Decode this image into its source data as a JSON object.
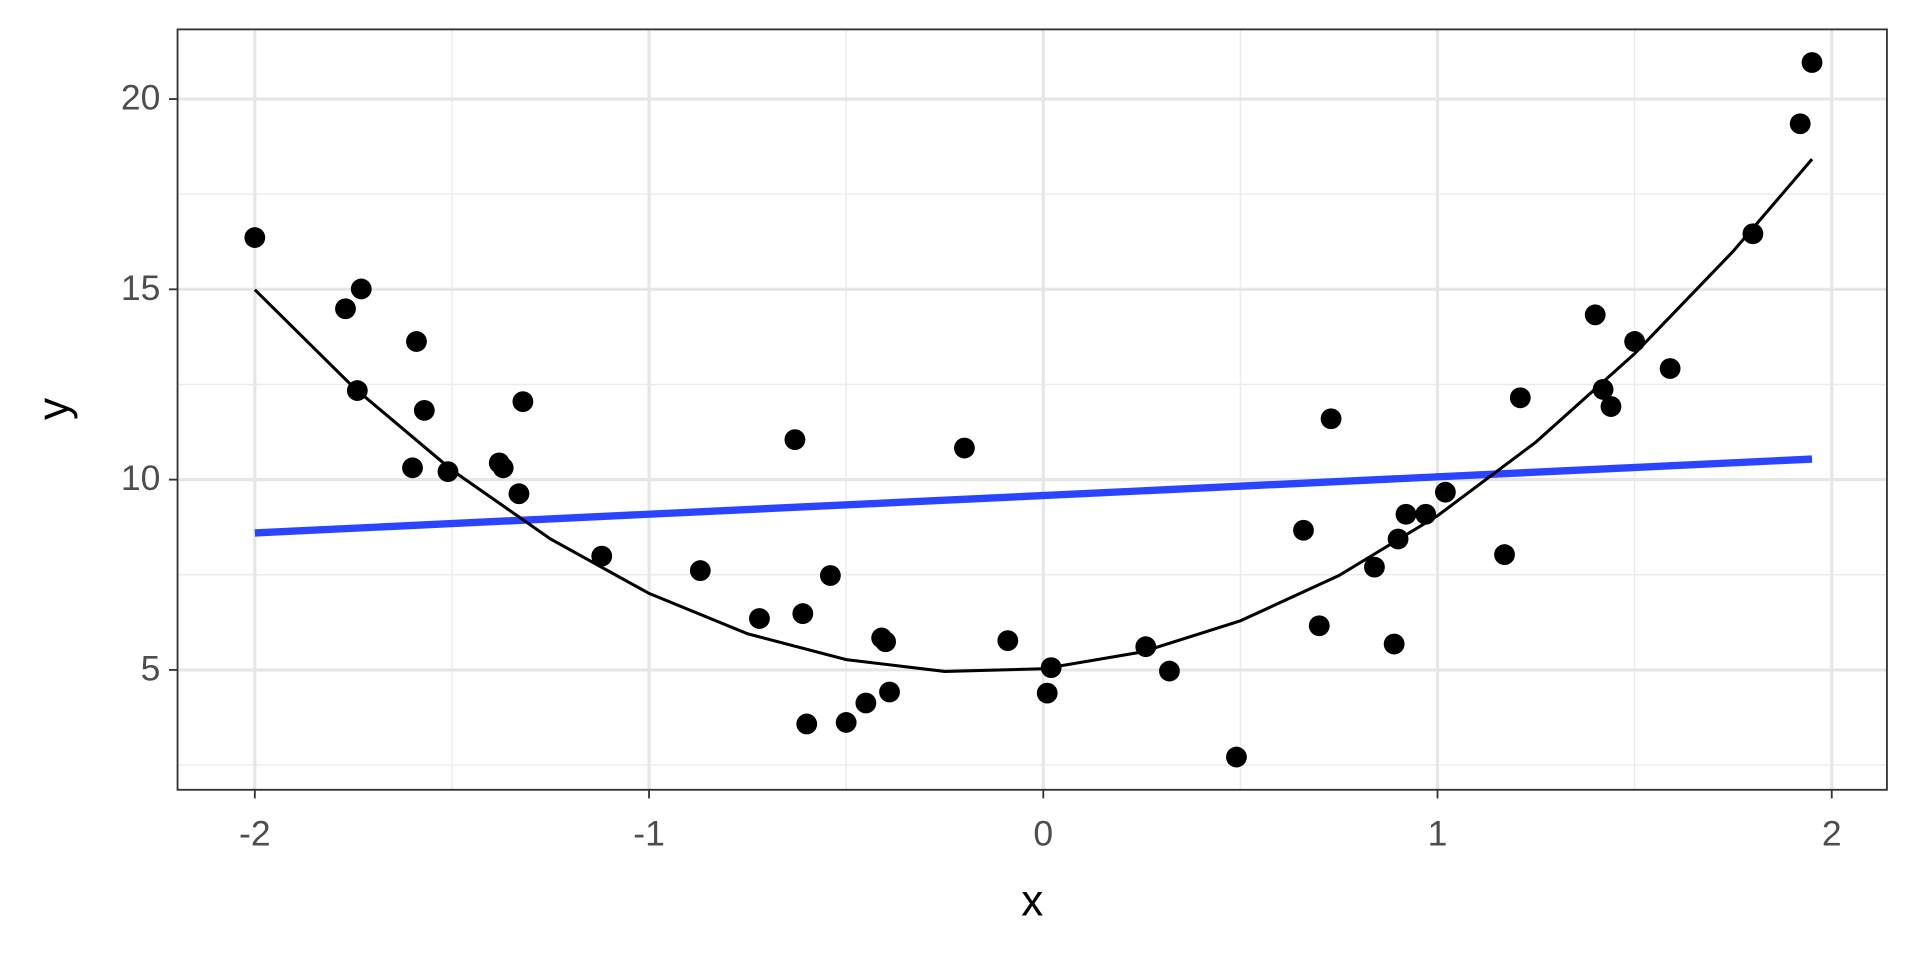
{
  "chart_data": {
    "type": "scatter",
    "x_label": "x",
    "y_label": "y",
    "xlim": [
      -2.196,
      2.14
    ],
    "ylim": [
      1.85,
      21.83
    ],
    "xticks": [
      -2,
      -1,
      0,
      1,
      2
    ],
    "yticks": [
      5,
      10,
      15,
      20
    ],
    "x_minor_grid": [
      -1.5,
      -0.5,
      0.5,
      1.5
    ],
    "y_minor_grid": [
      2.5,
      7.5,
      12.5,
      17.5
    ],
    "grid": true,
    "series": [
      {
        "mark": "point",
        "color": "#000000",
        "x": [
          -2.0,
          -1.77,
          -1.73,
          -1.74,
          -1.59,
          -1.57,
          -1.6,
          -1.51,
          -1.38,
          -1.37,
          -1.33,
          -1.32,
          -1.12,
          -0.87,
          -0.72,
          -0.61,
          -0.63,
          -0.54,
          -0.6,
          -0.5,
          -0.45,
          -0.41,
          -0.4,
          -0.39,
          -0.2,
          -0.09,
          0.02,
          0.01,
          0.26,
          0.32,
          0.49,
          0.66,
          0.7,
          0.73,
          0.84,
          0.89,
          0.9,
          0.92,
          0.97,
          1.02,
          1.17,
          1.21,
          1.4,
          1.42,
          1.44,
          1.5,
          1.59,
          1.8,
          1.92,
          1.95
        ],
        "values": [
          16.36,
          14.49,
          15.01,
          12.34,
          13.63,
          11.82,
          10.31,
          10.21,
          10.44,
          10.31,
          9.63,
          12.05,
          7.99,
          7.61,
          6.35,
          6.48,
          11.05,
          7.48,
          3.58,
          3.62,
          4.13,
          5.84,
          5.74,
          4.42,
          10.83,
          5.77,
          5.06,
          4.39,
          5.61,
          4.97,
          2.71,
          8.67,
          6.16,
          11.6,
          7.7,
          5.68,
          8.44,
          9.09,
          9.09,
          9.67,
          8.03,
          12.15,
          14.33,
          12.37,
          11.92,
          13.63,
          12.92,
          16.46,
          19.35,
          20.96
        ]
      },
      {
        "mark": "line",
        "color": "#2a44ff",
        "width": 6,
        "x": [
          -2,
          1.95
        ],
        "values": [
          8.6,
          10.54
        ]
      },
      {
        "mark": "line",
        "color": "#000000",
        "width": 2.5,
        "x": [
          -2,
          -1.75,
          -1.5,
          -1.25,
          -1,
          -0.75,
          -0.5,
          -0.25,
          0,
          0.25,
          0.5,
          0.75,
          1,
          1.25,
          1.5,
          1.75,
          1.95
        ],
        "values": [
          14.99,
          12.43,
          10.25,
          8.44,
          7.01,
          5.95,
          5.27,
          4.96,
          5.03,
          5.47,
          6.29,
          7.48,
          9.05,
          10.99,
          13.31,
          16.0,
          18.42
        ]
      }
    ]
  }
}
